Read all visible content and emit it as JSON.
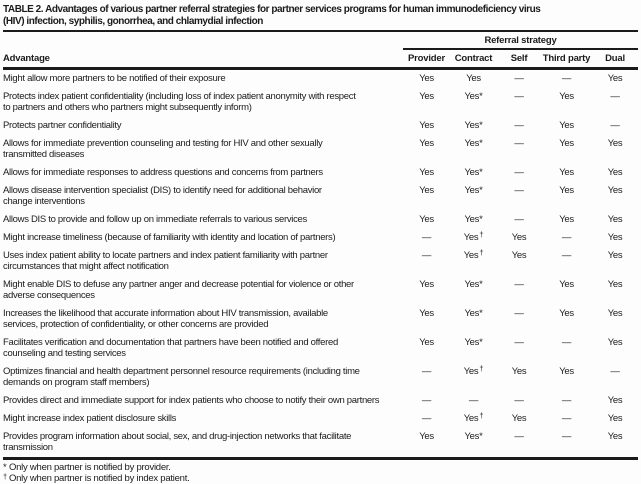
{
  "colors": {
    "text": "#1b1b1b",
    "background": "#fdfdfd",
    "rule": "#1b1b1b"
  },
  "table": {
    "title_lines": [
      "TABLE 2. Advantages of various partner referral strategies for partner services programs for human immunodeficiency virus",
      "(HIV) infection, syphilis, gonorrhea, and chlamydial infection"
    ],
    "header_group": "Referral strategy",
    "columns": [
      "Advantage",
      "Provider",
      "Contract",
      "Self",
      "Third party",
      "Dual"
    ],
    "rows": [
      {
        "advantage": "Might allow more partners to be notified of their exposure",
        "values": [
          "Yes",
          "Yes",
          "—",
          "—",
          "Yes"
        ]
      },
      {
        "advantage": "Protects index patient confidentiality (including loss of index patient anonymity with respect\nto partners and others who partners might subsequently inform)",
        "values": [
          "Yes",
          "Yes*",
          "—",
          "Yes",
          "—"
        ]
      },
      {
        "advantage": "Protects partner confidentiality",
        "values": [
          "Yes",
          "Yes*",
          "—",
          "Yes",
          "—"
        ]
      },
      {
        "advantage": "Allows for immediate prevention counseling and testing for HIV and other sexually\ntransmitted diseases",
        "values": [
          "Yes",
          "Yes*",
          "—",
          "Yes",
          "Yes"
        ]
      },
      {
        "advantage": "Allows for immediate responses to address questions and concerns from partners",
        "values": [
          "Yes",
          "Yes*",
          "—",
          "Yes",
          "Yes"
        ]
      },
      {
        "advantage": "Allows disease intervention specialist (DIS) to identify need for additional behavior\nchange interventions",
        "values": [
          "Yes",
          "Yes*",
          "—",
          "Yes",
          "Yes"
        ]
      },
      {
        "advantage": "Allows DIS to provide and follow up on immediate referrals to various services",
        "values": [
          "Yes",
          "Yes*",
          "—",
          "Yes",
          "Yes"
        ]
      },
      {
        "advantage": "Might increase timeliness (because of familiarity with identity and location of partners)",
        "values": [
          "—",
          "Yes†",
          "Yes",
          "—",
          "Yes"
        ]
      },
      {
        "advantage": "Uses index patient ability to locate partners and index patient familiarity with partner\ncircumstances that might affect notification",
        "values": [
          "—",
          "Yes†",
          "Yes",
          "—",
          "Yes"
        ]
      },
      {
        "advantage": "Might enable DIS to defuse any partner anger and decrease potential for violence or other\nadverse consequences",
        "values": [
          "Yes",
          "Yes*",
          "—",
          "Yes",
          "Yes"
        ]
      },
      {
        "advantage": "Increases the likelihood that accurate information about HIV transmission, available\nservices, protection of confidentiality, or other concerns are provided",
        "values": [
          "Yes",
          "Yes*",
          "—",
          "Yes",
          "Yes"
        ]
      },
      {
        "advantage": "Facilitates verification and documentation that partners have been notified and offered\ncounseling and testing services",
        "values": [
          "Yes",
          "Yes*",
          "—",
          "—",
          "Yes"
        ]
      },
      {
        "advantage": "Optimizes financial and health department personnel resource requirements (including time\ndemands on program staff members)",
        "values": [
          "—",
          "Yes†",
          "Yes",
          "Yes",
          "—"
        ]
      },
      {
        "advantage": "Provides direct and immediate support for index patients who choose to notify their own partners",
        "values": [
          "—",
          "—",
          "—",
          "—",
          "Yes"
        ]
      },
      {
        "advantage": "Might increase index patient disclosure skills",
        "values": [
          "—",
          "Yes†",
          "Yes",
          "—",
          "Yes"
        ]
      },
      {
        "advantage": "Provides program information about social, sex, and drug-injection networks that facilitate\ntransmission",
        "values": [
          "Yes",
          "Yes*",
          "—",
          "—",
          "Yes"
        ]
      }
    ],
    "footnotes": [
      {
        "marker": "*",
        "text": "Only when partner is notified by provider."
      },
      {
        "marker": "†",
        "text": "Only when partner is notified by index patient."
      }
    ]
  }
}
